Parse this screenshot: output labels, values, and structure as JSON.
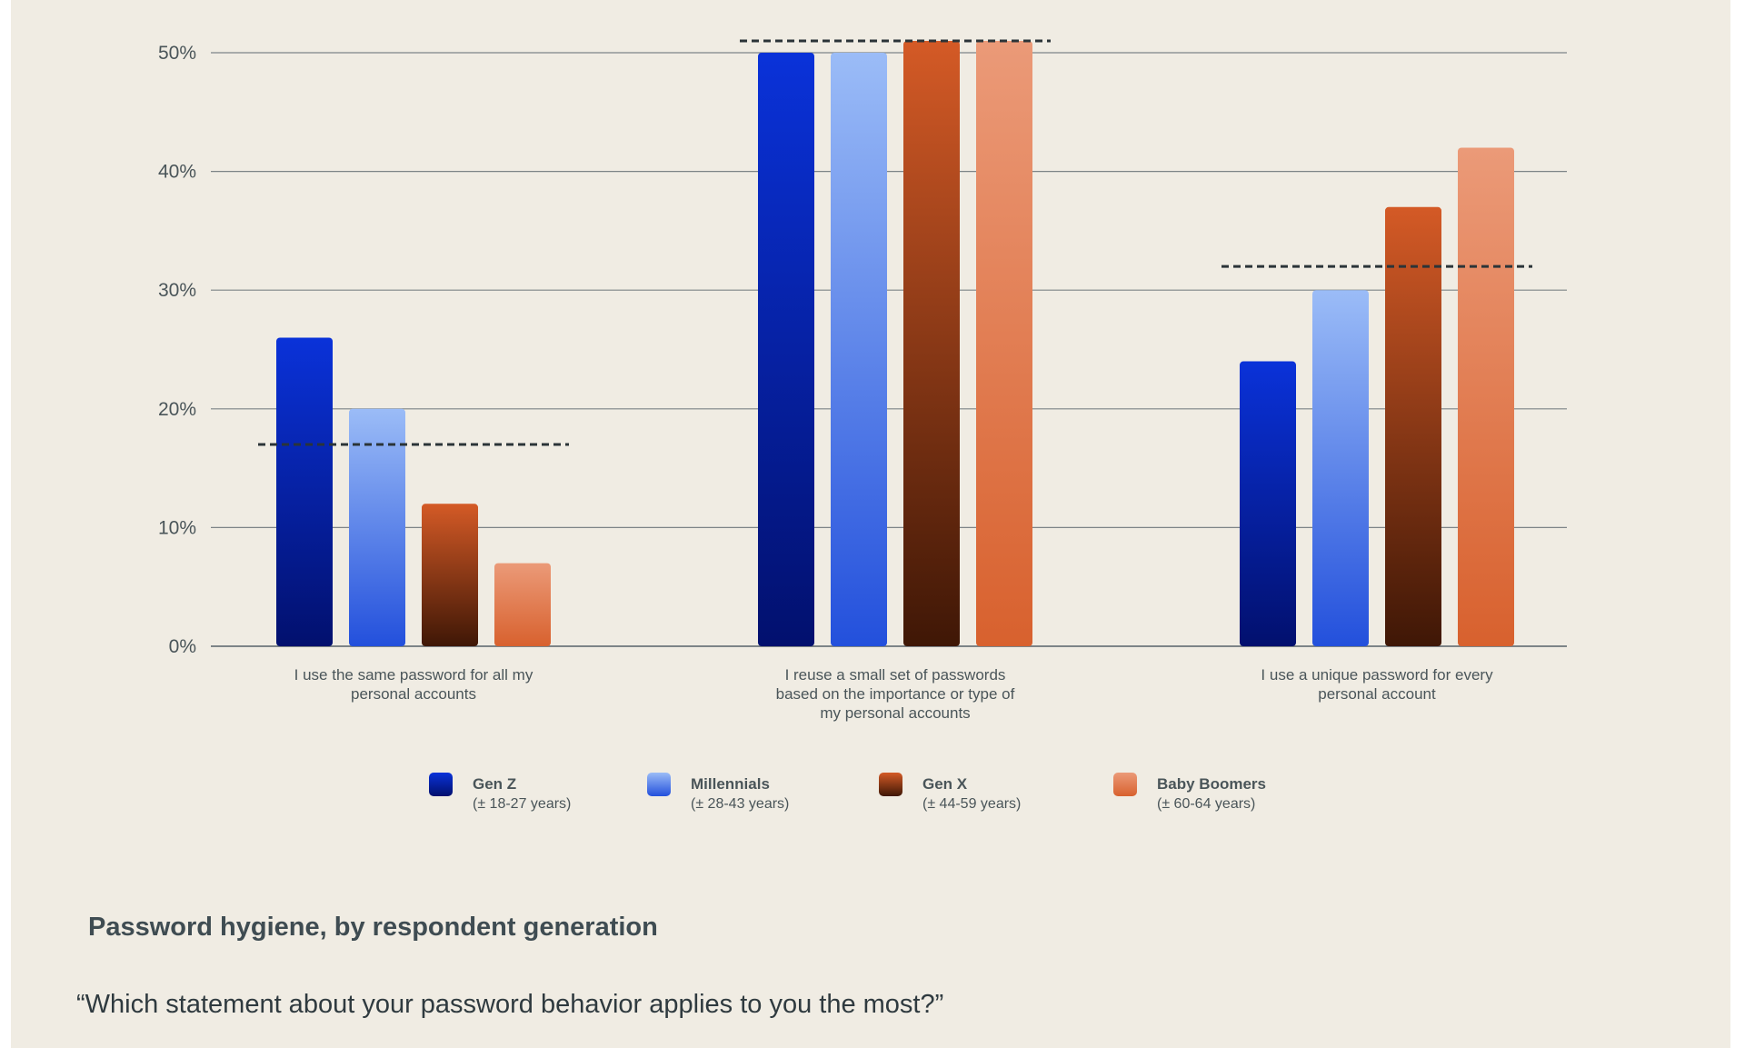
{
  "chart_data": {
    "type": "bar",
    "title": "Password hygiene, by respondent generation",
    "subtitle": "“Which statement about your password behavior applies to you the most?”",
    "categories": [
      [
        "I use the same password for all my",
        "personal accounts"
      ],
      [
        "I reuse a small set of passwords",
        "based on the importance or type of",
        "my personal accounts"
      ],
      [
        "I use a unique password for every",
        "personal account"
      ]
    ],
    "series": [
      {
        "name": "Gen Z",
        "sub": "(± 18-27 years)",
        "values": [
          26,
          50,
          24
        ],
        "color_top": "#0a32d9",
        "color_bottom": "#02106e"
      },
      {
        "name": "Millennials",
        "sub": "(± 28-43 years)",
        "values": [
          20,
          50,
          30
        ],
        "color_top": "#9bbcf7",
        "color_bottom": "#2350dc"
      },
      {
        "name": "Gen X",
        "sub": "(± 44-59 years)",
        "values": [
          12,
          51,
          37
        ],
        "color_top": "#d45a26",
        "color_bottom": "#3f1706"
      },
      {
        "name": "Baby Boomers",
        "sub": "(± 60-64 years)",
        "values": [
          7,
          51,
          42
        ],
        "color_top": "#eb9a78",
        "color_bottom": "#d8612e"
      }
    ],
    "averages": [
      17,
      51,
      32
    ],
    "ylim": [
      0,
      50
    ],
    "yticks": [
      0,
      10,
      20,
      30,
      40,
      50
    ],
    "ytick_labels": [
      "0%",
      "10%",
      "20%",
      "30%",
      "40%",
      "50%"
    ],
    "grid": true,
    "legend_position": "bottom",
    "colors": {
      "background": "#f0ece3",
      "grid": "#7d8487",
      "text": "#4a5559",
      "average_line": "#2b3438"
    }
  }
}
